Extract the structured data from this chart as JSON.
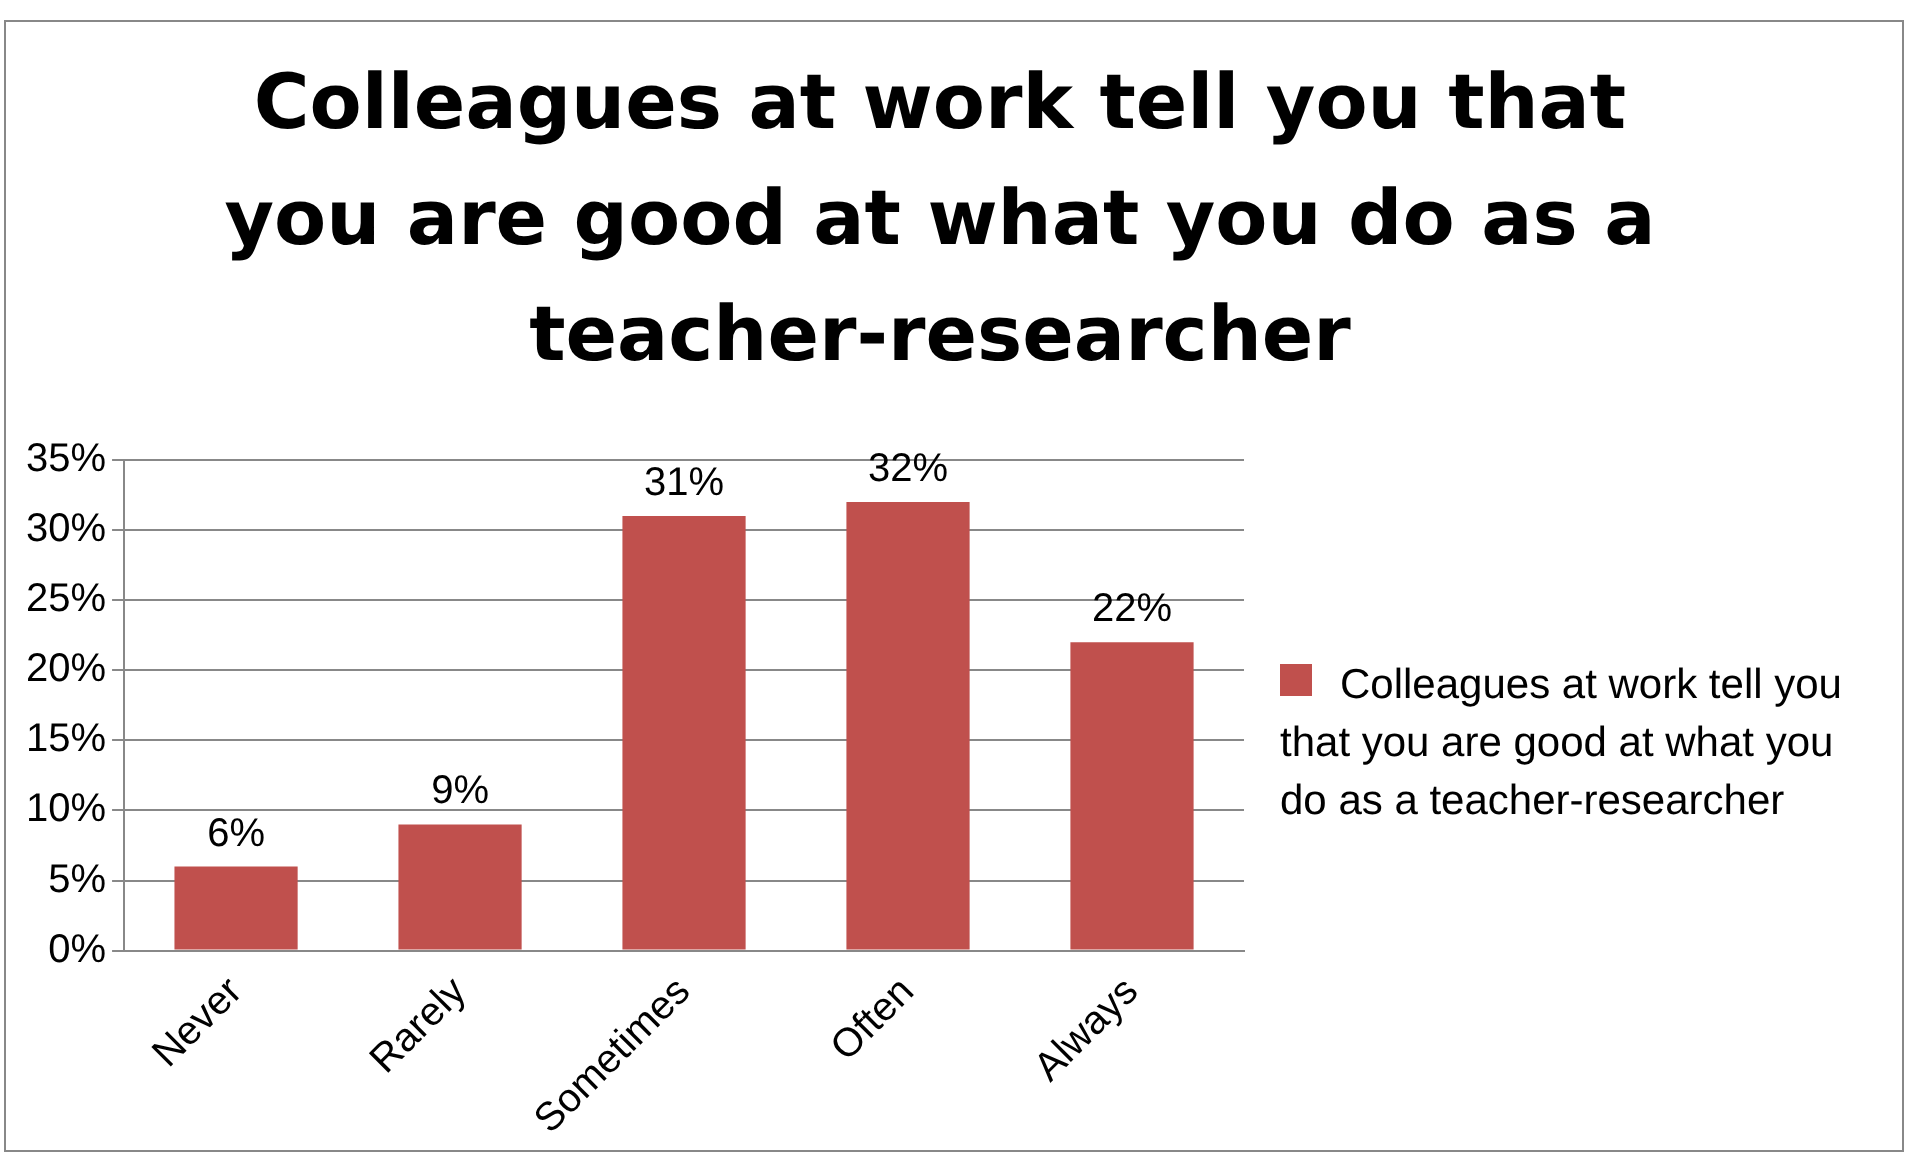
{
  "chart_data": {
    "type": "bar",
    "title": "Colleagues at work tell you that you are good at what you do as a teacher-researcher",
    "categories": [
      "Never",
      "Rarely",
      "Sometimes",
      "Often",
      "Always"
    ],
    "series": [
      {
        "name": "Colleagues at work tell you that you are good at what you do as a teacher-researcher",
        "color": "#c0504d",
        "values": [
          6,
          9,
          31,
          32,
          22
        ],
        "value_labels": [
          "6%",
          "9%",
          "31%",
          "32%",
          "22%"
        ]
      }
    ],
    "ylim": [
      0,
      35
    ],
    "yticks": [
      {
        "value": 0,
        "label": "0%"
      },
      {
        "value": 5,
        "label": "5%"
      },
      {
        "value": 10,
        "label": "10%"
      },
      {
        "value": 15,
        "label": "15%"
      },
      {
        "value": 20,
        "label": "20%"
      },
      {
        "value": 25,
        "label": "25%"
      },
      {
        "value": 30,
        "label": "30%"
      },
      {
        "value": 35,
        "label": "35%"
      }
    ],
    "grid": "y",
    "legend": "right"
  }
}
